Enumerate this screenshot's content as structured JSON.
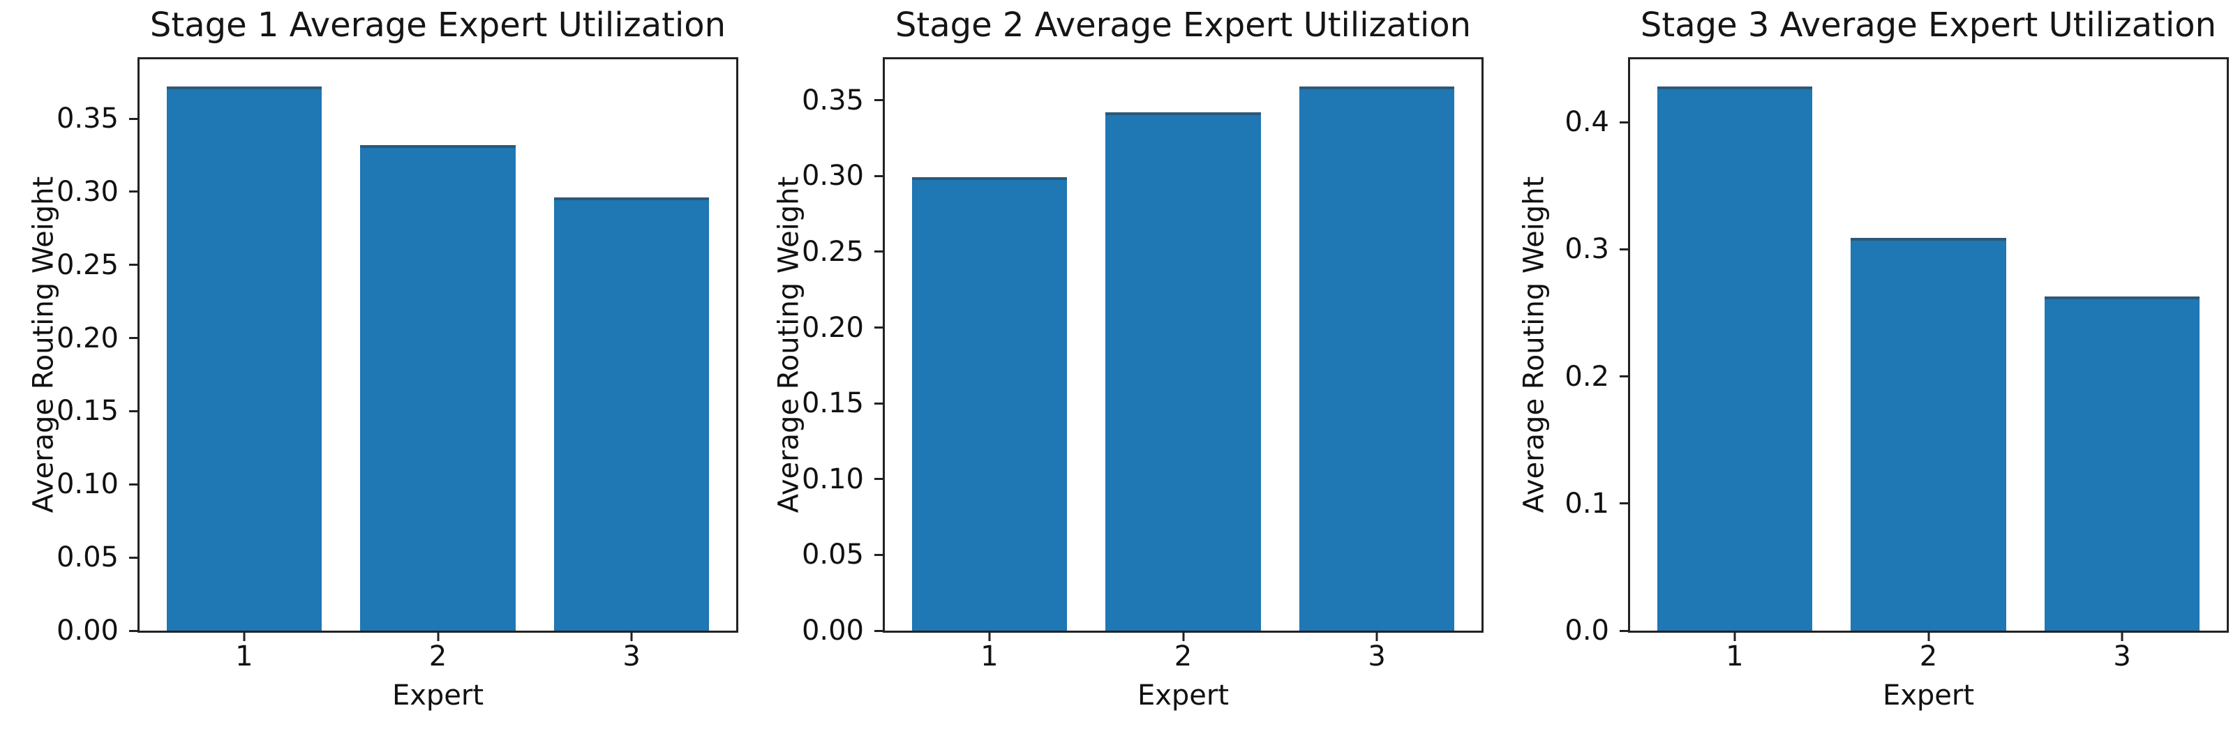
{
  "figure": {
    "background": "#ffffff",
    "text_color": "#111111",
    "axis_color": "#222222"
  },
  "chart_data": [
    {
      "type": "bar",
      "title": "Stage 1 Average Expert Utilization",
      "xlabel": "Expert",
      "ylabel": "Average Routing Weight",
      "categories": [
        "1",
        "2",
        "3"
      ],
      "x_positions": [
        1,
        2,
        3
      ],
      "values": [
        0.372,
        0.332,
        0.296
      ],
      "bar_color": "#1f77b4",
      "bar_edge_color": "#2c5878",
      "bar_width": 0.8,
      "xlim": [
        0.46,
        3.54
      ],
      "ylim": [
        0,
        0.3906
      ],
      "yticks": [
        0.0,
        0.05,
        0.1,
        0.15,
        0.2,
        0.25,
        0.3,
        0.35
      ],
      "ytick_labels": [
        "0.00",
        "0.05",
        "0.10",
        "0.15",
        "0.20",
        "0.25",
        "0.30",
        "0.35"
      ],
      "grid": false,
      "legend": null
    },
    {
      "type": "bar",
      "title": "Stage 2 Average Expert Utilization",
      "xlabel": "Expert",
      "ylabel": "Average Routing Weight",
      "categories": [
        "1",
        "2",
        "3"
      ],
      "x_positions": [
        1,
        2,
        3
      ],
      "values": [
        0.299,
        0.342,
        0.359
      ],
      "bar_color": "#1f77b4",
      "bar_edge_color": "#2c5878",
      "bar_width": 0.8,
      "xlim": [
        0.46,
        3.54
      ],
      "ylim": [
        0,
        0.377
      ],
      "yticks": [
        0.0,
        0.05,
        0.1,
        0.15,
        0.2,
        0.25,
        0.3,
        0.35
      ],
      "ytick_labels": [
        "0.00",
        "0.05",
        "0.10",
        "0.15",
        "0.20",
        "0.25",
        "0.30",
        "0.35"
      ],
      "grid": false,
      "legend": null
    },
    {
      "type": "bar",
      "title": "Stage 3 Average Expert Utilization",
      "xlabel": "Expert",
      "ylabel": "Average Routing Weight",
      "categories": [
        "1",
        "2",
        "3"
      ],
      "x_positions": [
        1,
        2,
        3
      ],
      "values": [
        0.428,
        0.309,
        0.263
      ],
      "bar_color": "#1f77b4",
      "bar_edge_color": "#2c5878",
      "bar_width": 0.8,
      "xlim": [
        0.46,
        3.54
      ],
      "ylim": [
        0,
        0.4494
      ],
      "yticks": [
        0.0,
        0.1,
        0.2,
        0.3,
        0.4
      ],
      "ytick_labels": [
        "0.0",
        "0.1",
        "0.2",
        "0.3",
        "0.4"
      ],
      "grid": false,
      "legend": null
    }
  ]
}
